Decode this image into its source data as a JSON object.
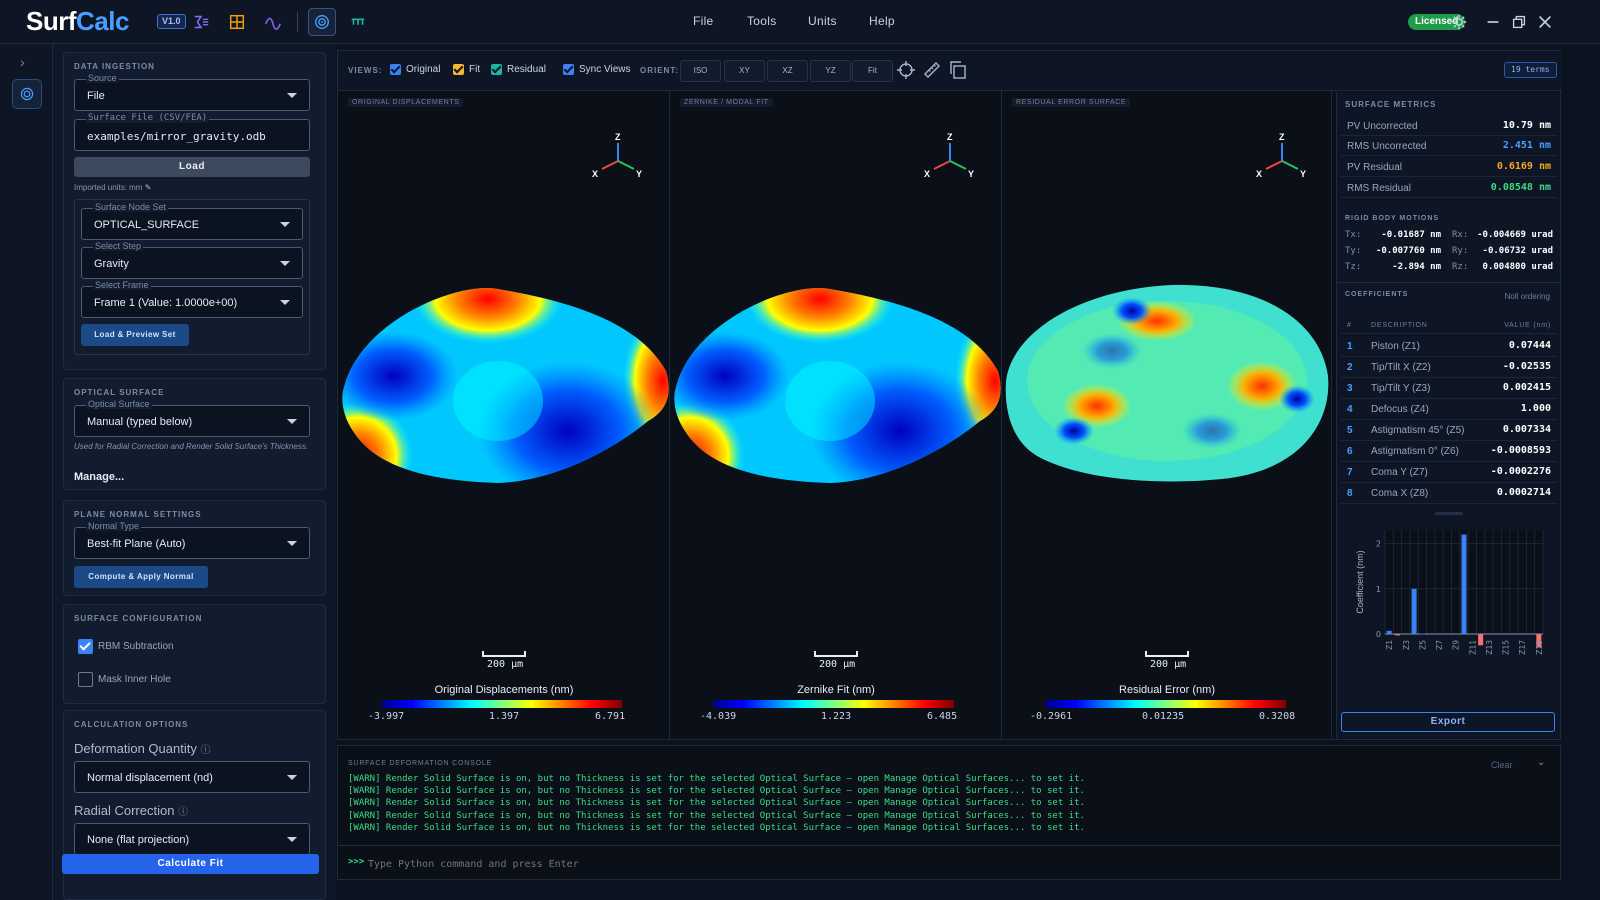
{
  "app": {
    "name_a": "Surf",
    "name_b": "Calc",
    "version": "V1.0",
    "license": "Licensed"
  },
  "menu": [
    "File",
    "Tools",
    "Units",
    "Help"
  ],
  "left": {
    "ingestion": {
      "title": "DATA INGESTION",
      "source_label": "Source",
      "source_value": "File",
      "file_label": "Surface File (CSV/FEA)",
      "file_value": "examples/mirror_gravity.odb",
      "load": "Load",
      "units": "Imported units: mm",
      "nodeset_label": "Surface Node Set",
      "nodeset_value": "OPTICAL_SURFACE",
      "step_label": "Select Step",
      "step_value": "Gravity",
      "frame_label": "Select Frame",
      "frame_value": "Frame 1 (Value: 1.0000e+00)",
      "preview": "Load & Preview Set"
    },
    "optical": {
      "title": "OPTICAL SURFACE",
      "label": "Optical Surface",
      "value": "Manual (typed below)",
      "hint": "Used for Radial Correction and Render Solid Surface's Thickness.",
      "manage": "Manage..."
    },
    "plane": {
      "title": "PLANE NORMAL SETTINGS",
      "label": "Normal Type",
      "value": "Best-fit Plane (Auto)",
      "button": "Compute & Apply Normal"
    },
    "config": {
      "title": "SURFACE CONFIGURATION",
      "rbm": "RBM Subtraction",
      "rbm_on": true,
      "mask": "Mask Inner Hole",
      "mask_on": false
    },
    "calc": {
      "title": "CALCULATION OPTIONS",
      "deform_label": "Deformation Quantity",
      "deform_value": "Normal displacement (nd)",
      "radial_label": "Radial Correction",
      "radial_value": "None (flat projection)",
      "button": "Calculate Fit"
    }
  },
  "viewsbar": {
    "views_label": "VIEWS:",
    "checks": [
      {
        "label": "Original",
        "color": "#3b82f6"
      },
      {
        "label": "Fit",
        "color": "#f5b829"
      },
      {
        "label": "Residual",
        "color": "#1fb5a0"
      },
      {
        "label": "Sync Views",
        "color": "#3b82f6"
      }
    ],
    "orient_label": "ORIENT:",
    "orient": [
      "ISO",
      "XY",
      "XZ",
      "YZ",
      "Fit"
    ],
    "terms": "19 terms"
  },
  "panes": [
    {
      "tag": "ORIGINAL DISPLACEMENTS",
      "scale": "200 µm",
      "cb_title": "Original Displacements (nm)",
      "ticks": [
        "-3.997",
        "1.397",
        "6.791"
      ]
    },
    {
      "tag": "ZERNIKE / MODAL FIT",
      "scale": "200 µm",
      "cb_title": "Zernike Fit (nm)",
      "ticks": [
        "-4.039",
        "1.223",
        "6.485"
      ]
    },
    {
      "tag": "RESIDUAL ERROR SURFACE",
      "scale": "200 µm",
      "cb_title": "Residual Error (nm)",
      "ticks": [
        "-0.2961",
        "0.01235",
        "0.3208"
      ]
    }
  ],
  "axes": {
    "z": "Z",
    "x": "X",
    "y": "Y"
  },
  "metrics": {
    "title": "SURFACE METRICS",
    "rows": [
      {
        "label": "PV Uncorrected",
        "value": "10.79 nm",
        "color": "#ffffff"
      },
      {
        "label": "RMS Uncorrected",
        "value": "2.451 nm",
        "color": "#4a9eff"
      },
      {
        "label": "PV Residual",
        "value": "0.6169 nm",
        "color": "#f5a524"
      },
      {
        "label": "RMS Residual",
        "value": "0.08548 nm",
        "color": "#3ddc84"
      }
    ],
    "rbm_title": "RIGID BODY MOTIONS",
    "rbm": [
      {
        "l1": "Tx:",
        "v1": "-0.01687 nm",
        "l2": "Rx:",
        "v2": "-0.004669 urad"
      },
      {
        "l1": "Ty:",
        "v1": "-0.007760 nm",
        "l2": "Ry:",
        "v2": "-0.06732 urad"
      },
      {
        "l1": "Tz:",
        "v1": "-2.894 nm",
        "l2": "Rz:",
        "v2": "0.004800 urad"
      }
    ]
  },
  "coefficients": {
    "title": "COEFFICIENTS",
    "ordering": "Noll ordering",
    "head": {
      "n": "#",
      "d": "DESCRIPTION",
      "v": "VALUE (nm)"
    },
    "rows": [
      {
        "n": "1",
        "d": "Piston (Z1)",
        "v": "0.07444"
      },
      {
        "n": "2",
        "d": "Tip/Tilt X (Z2)",
        "v": "-0.02535"
      },
      {
        "n": "3",
        "d": "Tip/Tilt Y (Z3)",
        "v": "0.002415"
      },
      {
        "n": "4",
        "d": "Defocus (Z4)",
        "v": "1.000"
      },
      {
        "n": "5",
        "d": "Astigmatism 45° (Z5)",
        "v": "0.007334"
      },
      {
        "n": "6",
        "d": "Astigmatism 0° (Z6)",
        "v": "-0.0008593"
      },
      {
        "n": "7",
        "d": "Coma Y (Z7)",
        "v": "-0.0002276"
      },
      {
        "n": "8",
        "d": "Coma X (Z8)",
        "v": "0.0002714"
      }
    ],
    "export": "Export"
  },
  "chart_data": {
    "type": "bar",
    "ylabel": "Coefficient (nm)",
    "ylim": [
      0,
      2.3
    ],
    "yticks": [
      0,
      1,
      2
    ],
    "categories": [
      "Z1",
      "Z2",
      "Z3",
      "Z4",
      "Z5",
      "Z6",
      "Z7",
      "Z8",
      "Z9",
      "Z10",
      "Z11",
      "Z12",
      "Z13",
      "Z14",
      "Z15",
      "Z16",
      "Z17",
      "Z18",
      "Z19"
    ],
    "tick_labels": [
      "Z1",
      "Z3",
      "Z5",
      "Z7",
      "Z9",
      "Z11",
      "Z13",
      "Z15",
      "Z17",
      "Z19"
    ],
    "values": [
      0.07,
      -0.03,
      0.0,
      1.0,
      0.01,
      0.0,
      0.0,
      0.0,
      0.0,
      2.2,
      0.0,
      -0.25,
      0.0,
      0.0,
      0.0,
      0.0,
      0.0,
      0.0,
      -0.3
    ],
    "pos_color": "#3b82f6",
    "neg_color": "#f87171"
  },
  "console": {
    "title": "SURFACE DEFORMATION CONSOLE",
    "clear": "Clear",
    "lines": [
      "[WARN] Render Solid Surface is on, but no Thickness is set for the selected Optical Surface — open Manage Optical Surfaces... to set it.",
      "[WARN] Render Solid Surface is on, but no Thickness is set for the selected Optical Surface — open Manage Optical Surfaces... to set it.",
      "[WARN] Render Solid Surface is on, but no Thickness is set for the selected Optical Surface — open Manage Optical Surfaces... to set it.",
      "[WARN] Render Solid Surface is on, but no Thickness is set for the selected Optical Surface — open Manage Optical Surfaces... to set it.",
      "[WARN] Render Solid Surface is on, but no Thickness is set for the selected Optical Surface — open Manage Optical Surfaces... to set it."
    ],
    "prompt": ">>>",
    "placeholder": "Type Python command and press Enter"
  }
}
